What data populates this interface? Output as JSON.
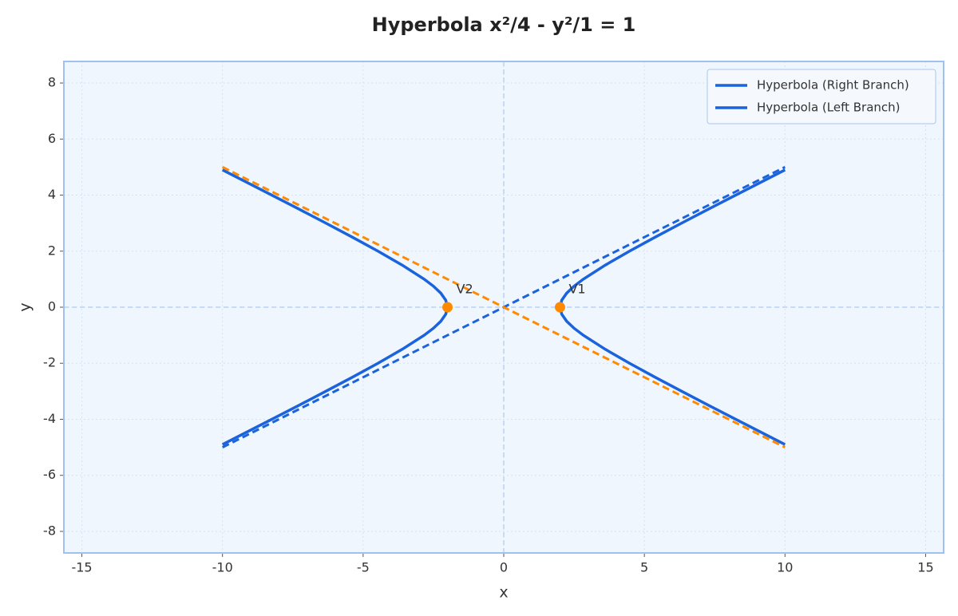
{
  "chart_data": {
    "type": "line",
    "title": "Hyperbola x²/4 - y²/1 = 1",
    "xlabel": "x",
    "ylabel": "y",
    "xlim": [
      -15.64,
      15.64
    ],
    "ylim": [
      -8.77,
      8.77
    ],
    "xticks": [
      -15,
      -10,
      -5,
      0,
      5,
      10,
      15
    ],
    "yticks": [
      -8,
      -6,
      -4,
      -2,
      0,
      2,
      4,
      6,
      8
    ],
    "grid": true,
    "zero_lines": true,
    "legend": "upper right",
    "series": [
      {
        "name": "Hyperbola (Right Branch)",
        "color": "#1a63dc",
        "style": "solid",
        "x": [
          10.0,
          8.246,
          7.28,
          6.325,
          5.385,
          4.472,
          3.606,
          2.828,
          2.5,
          2.236,
          2.062,
          2,
          2.062,
          2.236,
          2.5,
          2.828,
          3.606,
          4.472,
          5.385,
          6.325,
          7.28,
          8.246,
          10.0
        ],
        "values": [
          -4.9,
          -4,
          -3.5,
          -3,
          -2.5,
          -2,
          -1.5,
          -1,
          -0.75,
          -0.5,
          -0.25,
          0,
          0.25,
          0.5,
          0.75,
          1,
          1.5,
          2,
          2.5,
          3,
          3.5,
          4,
          4.9
        ]
      },
      {
        "name": "Hyperbola (Left Branch)",
        "color": "#1a63dc",
        "style": "solid",
        "x": [
          -10.0,
          -8.246,
          -7.28,
          -6.325,
          -5.385,
          -4.472,
          -3.606,
          -2.828,
          -2.5,
          -2.236,
          -2.062,
          -2,
          -2.062,
          -2.236,
          -2.5,
          -2.828,
          -3.606,
          -4.472,
          -5.385,
          -6.325,
          -7.28,
          -8.246,
          -10.0
        ],
        "values": [
          -4.9,
          -4,
          -3.5,
          -3,
          -2.5,
          -2,
          -1.5,
          -1,
          -0.75,
          -0.5,
          -0.25,
          0,
          0.25,
          0.5,
          0.75,
          1,
          1.5,
          2,
          2.5,
          3,
          3.5,
          4,
          4.9
        ]
      },
      {
        "color": "#1a63dc",
        "style": "dashed",
        "x": [
          -10,
          10
        ],
        "values": [
          -5,
          5
        ]
      },
      {
        "color": "#ff8a00",
        "style": "dashed",
        "x": [
          -10,
          10
        ],
        "values": [
          5,
          -5
        ]
      }
    ],
    "points": {
      "color": "#ff8a00",
      "x": [
        2,
        -2
      ],
      "values": [
        0,
        0
      ],
      "labels": [
        "V1",
        "V2"
      ]
    }
  }
}
